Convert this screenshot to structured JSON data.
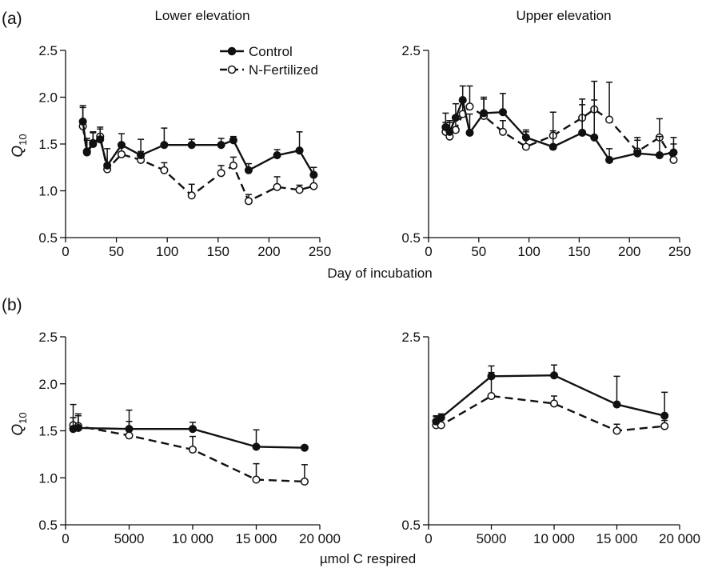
{
  "colors": {
    "ink": "#111111",
    "background": "#ffffff"
  },
  "labels": {
    "panel_a": "(a)",
    "panel_b": "(b)",
    "lower_title": "Lower elevation",
    "upper_title": "Upper elevation",
    "xlabel_top": "Day of incubation",
    "xlabel_bottom": "µmol C respired",
    "ylabel_main": "Q",
    "ylabel_sub": "10",
    "legend_control": "Control",
    "legend_nfert": "N-Fertilized"
  },
  "chart_data": [
    {
      "id": "a-lower",
      "panel": "(a)",
      "title": "Lower elevation",
      "type": "line",
      "xlabel": "Day of incubation",
      "ylabel": "Q10",
      "xlim": [
        0,
        250
      ],
      "ylim": [
        0.5,
        2.5
      ],
      "xticks": [
        0,
        50,
        100,
        150,
        200,
        250
      ],
      "xtick_labels": [
        "0",
        "50",
        "100",
        "150",
        "200",
        "250"
      ],
      "yticks": [
        0.5,
        1.0,
        1.5,
        2.0,
        2.5
      ],
      "ytick_labels": [
        "0.5",
        "1.0",
        "1.5",
        "2.0",
        "2.5"
      ],
      "legend": "top-right",
      "series": [
        {
          "name": "Control",
          "marker": "filled",
          "line": "solid",
          "x": [
            17,
            21,
            27,
            34,
            41,
            55,
            74,
            97,
            124,
            153,
            165,
            180,
            208,
            230,
            244
          ],
          "y": [
            1.74,
            1.42,
            1.51,
            1.55,
            1.27,
            1.49,
            1.38,
            1.49,
            1.49,
            1.49,
            1.54,
            1.22,
            1.38,
            1.43,
            1.17
          ],
          "err": [
            0.17,
            0.12,
            0.12,
            0.11,
            0.18,
            0.12,
            0.17,
            0.18,
            0.06,
            0.07,
            0.04,
            0.07,
            0.06,
            0.2,
            0.08
          ]
        },
        {
          "name": "N-Fertilized",
          "marker": "open",
          "line": "dashed",
          "x": [
            17,
            21,
            27,
            34,
            41,
            55,
            74,
            97,
            124,
            153,
            165,
            180,
            208,
            230,
            244
          ],
          "y": [
            1.69,
            1.41,
            1.5,
            1.58,
            1.23,
            1.39,
            1.33,
            1.22,
            0.95,
            1.19,
            1.27,
            0.89,
            1.04,
            1.01,
            1.05
          ],
          "err": [
            0.2,
            0.15,
            0.12,
            0.1,
            0.04,
            0.1,
            0.09,
            0.08,
            0.12,
            0.08,
            0.09,
            0.07,
            0.11,
            0.05,
            0.1
          ]
        }
      ]
    },
    {
      "id": "a-upper",
      "panel": "(a)",
      "title": "Upper elevation",
      "type": "line",
      "xlabel": "Day of incubation",
      "ylabel": "Q10",
      "xlim": [
        0,
        250
      ],
      "ylim": [
        0.5,
        2.5
      ],
      "xticks": [
        0,
        50,
        100,
        150,
        200,
        250
      ],
      "xtick_labels": [
        "0",
        "50",
        "100",
        "150",
        "200",
        "250"
      ],
      "yticks": [
        0.5,
        2.5
      ],
      "ytick_labels": [
        "0.5",
        "2.5"
      ],
      "series": [
        {
          "name": "Control",
          "marker": "filled",
          "line": "solid",
          "x": [
            17,
            21,
            27,
            34,
            41,
            55,
            74,
            97,
            124,
            153,
            165,
            180,
            208,
            230,
            244
          ],
          "y": [
            1.68,
            1.63,
            1.78,
            1.97,
            1.62,
            1.83,
            1.84,
            1.57,
            1.47,
            1.62,
            1.57,
            1.33,
            1.4,
            1.38,
            1.41
          ],
          "err": [
            0.15,
            0.12,
            0.15,
            0.15,
            0.2,
            0.15,
            0.2,
            0.08,
            0.17,
            0.3,
            0.4,
            0.12,
            0.17,
            0.2,
            0.16
          ]
        },
        {
          "name": "N-Fertilized",
          "marker": "open",
          "line": "dashed",
          "x": [
            17,
            21,
            27,
            34,
            41,
            55,
            74,
            97,
            124,
            153,
            165,
            180,
            208,
            230,
            244
          ],
          "y": [
            1.63,
            1.58,
            1.65,
            1.82,
            1.9,
            1.8,
            1.63,
            1.47,
            1.59,
            1.78,
            1.87,
            1.76,
            1.42,
            1.57,
            1.33
          ],
          "err": [
            0.1,
            0.15,
            0.12,
            0.14,
            0.22,
            0.2,
            0.12,
            0.16,
            0.25,
            0.2,
            0.3,
            0.4,
            0.12,
            0.2,
            0.17
          ]
        }
      ]
    },
    {
      "id": "b-lower",
      "panel": "(b)",
      "type": "line",
      "xlabel": "µmol C respired",
      "ylabel": "Q10",
      "xlim": [
        0,
        20000
      ],
      "ylim": [
        0.5,
        2.5
      ],
      "xticks": [
        0,
        5000,
        10000,
        15000,
        20000
      ],
      "xtick_labels": [
        "0",
        "5000",
        "10 000",
        "15 000",
        "20 000"
      ],
      "yticks": [
        0.5,
        1.0,
        1.5,
        2.0,
        2.5
      ],
      "ytick_labels": [
        "0.5",
        "1.0",
        "1.5",
        "2.0",
        "2.5"
      ],
      "series": [
        {
          "name": "Control",
          "marker": "filled",
          "line": "solid",
          "x": [
            600,
            1000,
            5000,
            10000,
            15000,
            18800
          ],
          "y": [
            1.52,
            1.53,
            1.52,
            1.52,
            1.33,
            1.32
          ],
          "err": [
            0.12,
            0.13,
            0.2,
            0.07,
            0.18,
            0.0
          ]
        },
        {
          "name": "N-Fertilized",
          "marker": "open",
          "line": "dashed",
          "x": [
            600,
            1000,
            5000,
            10000,
            15000,
            18800
          ],
          "y": [
            1.56,
            1.55,
            1.45,
            1.3,
            0.98,
            0.96
          ],
          "err": [
            0.22,
            0.13,
            0.15,
            0.14,
            0.17,
            0.18
          ]
        }
      ]
    },
    {
      "id": "b-upper",
      "panel": "(b)",
      "type": "line",
      "xlabel": "µmol C respired",
      "ylabel": "Q10",
      "xlim": [
        0,
        20000
      ],
      "ylim": [
        0.5,
        2.5
      ],
      "xticks": [
        0,
        5000,
        10000,
        15000,
        20000
      ],
      "xtick_labels": [
        "0",
        "5000",
        "10 000",
        "15 000",
        "20 000"
      ],
      "yticks": [
        0.5,
        2.5
      ],
      "ytick_labels": [
        "0.5",
        "2.5"
      ],
      "series": [
        {
          "name": "Control",
          "marker": "filled",
          "line": "solid",
          "x": [
            600,
            1000,
            5000,
            10000,
            15000,
            18800
          ],
          "y": [
            1.6,
            1.64,
            2.08,
            2.09,
            1.78,
            1.66
          ],
          "err": [
            0.05,
            0.04,
            0.11,
            0.11,
            0.3,
            0.25
          ]
        },
        {
          "name": "N-Fertilized",
          "marker": "open",
          "line": "dashed",
          "x": [
            600,
            1000,
            5000,
            10000,
            15000,
            18800
          ],
          "y": [
            1.56,
            1.56,
            1.87,
            1.79,
            1.5,
            1.55
          ],
          "err": [
            0.1,
            0.1,
            0.25,
            0.08,
            0.07,
            0.06
          ]
        }
      ]
    }
  ]
}
